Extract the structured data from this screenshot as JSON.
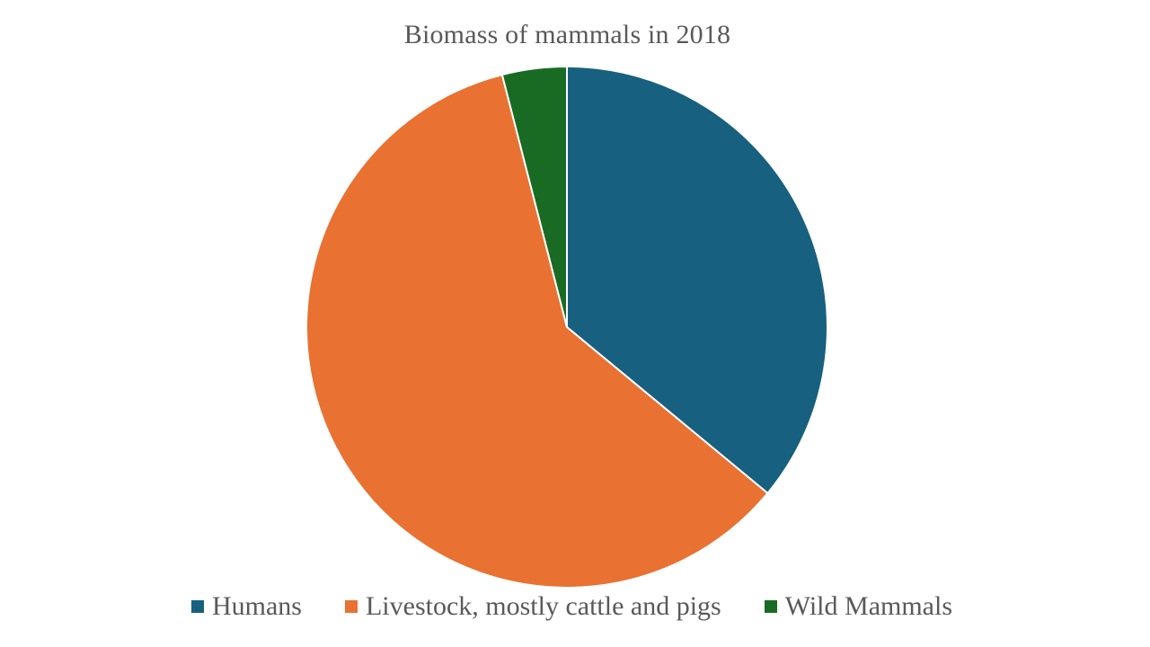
{
  "chart_data": {
    "type": "pie",
    "title": "Biomass of mammals in 2018",
    "categories": [
      "Humans",
      "Livestock, mostly cattle and pigs",
      "Wild Mammals"
    ],
    "values": [
      36,
      60,
      4
    ],
    "colors": [
      "#17607F",
      "#E97132",
      "#196B24"
    ],
    "slice_border_color": "#FFFFFF",
    "start_angle_deg": 0,
    "direction": "clockwise",
    "legend_position": "bottom"
  }
}
